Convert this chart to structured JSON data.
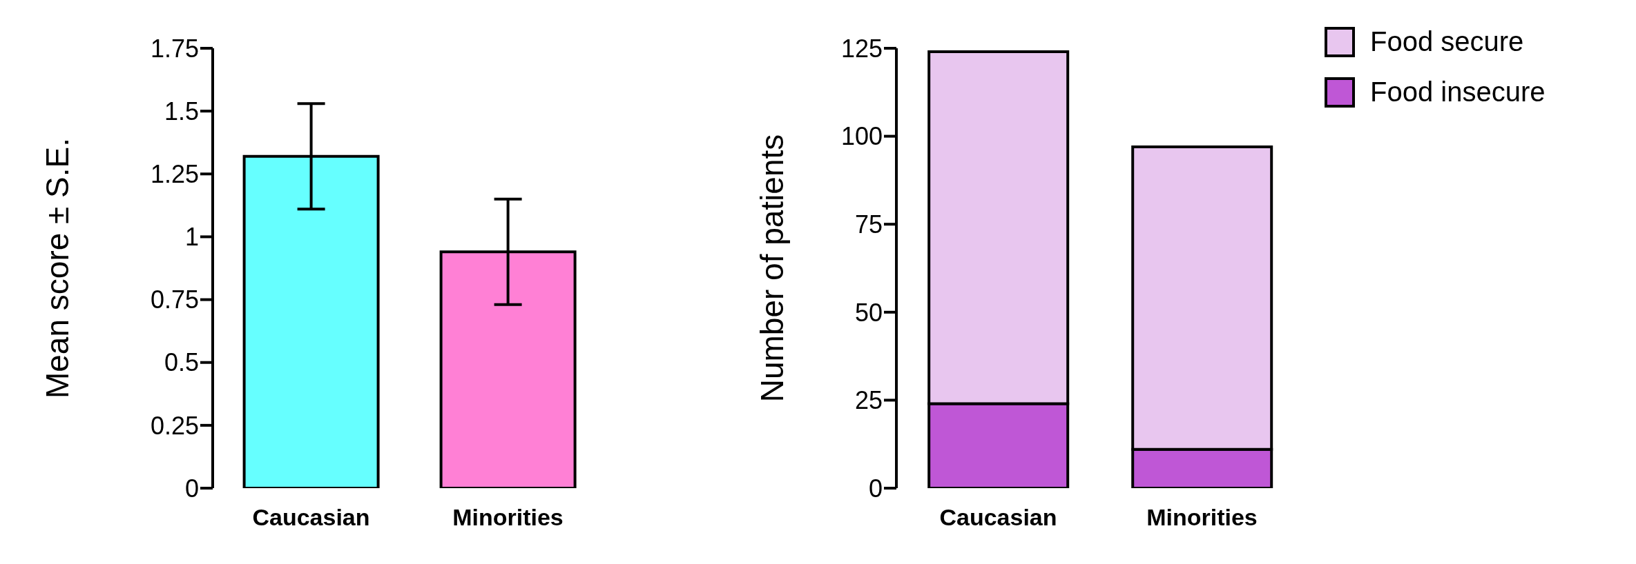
{
  "chart_data": [
    {
      "type": "bar",
      "ylabel": "Mean score ± S.E.",
      "categories": [
        "Caucasian",
        "Minorities"
      ],
      "values": [
        1.32,
        0.94
      ],
      "colors": [
        "#66ffff",
        "#ff80d5"
      ],
      "errors": [
        0.21,
        0.21
      ],
      "ylim": [
        0,
        1.75
      ],
      "yticks": [
        0,
        0.25,
        0.5,
        0.75,
        1,
        1.25,
        1.5,
        1.75
      ],
      "grid": false,
      "legend": false
    },
    {
      "type": "bar",
      "stacked": true,
      "ylabel": "Number of patients",
      "categories": [
        "Caucasian",
        "Minorities"
      ],
      "series": [
        {
          "name": "Food insecure",
          "color": "#bf57d6",
          "values": [
            24,
            11
          ]
        },
        {
          "name": "Food secure",
          "color": "#e8c6ef",
          "values": [
            100,
            86
          ]
        }
      ],
      "ylim": [
        0,
        125
      ],
      "yticks": [
        0,
        25,
        50,
        75,
        100,
        125
      ],
      "grid": false,
      "legend": "top right"
    }
  ]
}
